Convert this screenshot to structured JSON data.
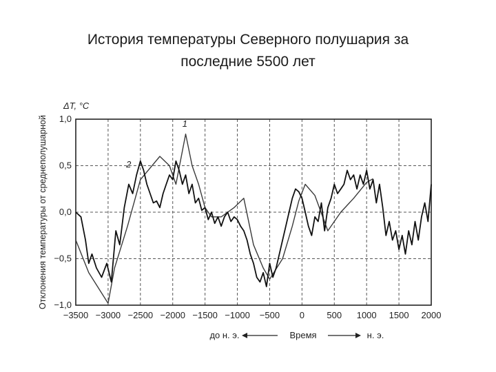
{
  "slide": {
    "title_line1": "История температуры Северного полушария за",
    "title_line2": "последние 5500 лет"
  },
  "chart_data": {
    "type": "line",
    "title": "История температуры Северного полушария за последние 5500 лет",
    "ylabel": "Отклонения температуры от среднеполушарной",
    "yunit": "ΔT, °C",
    "xlabel": "Время",
    "x_left_note": "до н. э.",
    "x_right_note": "н. э.",
    "xlim": [
      -3500,
      2000
    ],
    "ylim": [
      -1.0,
      1.0
    ],
    "grid": true,
    "x_ticks": [
      -3500,
      -3000,
      -2500,
      -2000,
      -1500,
      -1000,
      -500,
      0,
      500,
      1000,
      1500,
      2000
    ],
    "x_tick_labels": [
      "−3500",
      "−3000",
      "−2500",
      "−2000",
      "−1500",
      "−1000",
      "−500",
      "0",
      "500",
      "1000",
      "1500",
      "2000"
    ],
    "y_ticks": [
      -1.0,
      -0.5,
      0.0,
      0.5,
      1.0
    ],
    "y_tick_labels": [
      "−1,0",
      "−0,5",
      "0,0",
      "0,5",
      "1,0"
    ],
    "annotations": [
      {
        "text": "1",
        "x": -1850,
        "y": 0.92
      },
      {
        "text": "2",
        "x": -2720,
        "y": 0.48
      }
    ],
    "series": [
      {
        "label": "1",
        "color": "#3a3a3a",
        "x": [
          -3500,
          -3300,
          -3000,
          -2900,
          -2700,
          -2500,
          -2200,
          -2050,
          -1950,
          -1800,
          -1700,
          -1600,
          -1500,
          -1400,
          -1250,
          -1050,
          -900,
          -750,
          -600,
          -500,
          -300,
          -150,
          -50,
          50,
          200,
          400,
          600,
          800,
          1000,
          1100
        ],
        "y": [
          -0.3,
          -0.65,
          -0.98,
          -0.6,
          -0.15,
          0.35,
          0.6,
          0.5,
          0.3,
          0.84,
          0.5,
          0.3,
          0.05,
          -0.05,
          -0.05,
          0.05,
          0.15,
          -0.35,
          -0.6,
          -0.72,
          -0.5,
          -0.15,
          0.12,
          0.3,
          0.18,
          -0.2,
          0.0,
          0.15,
          0.32,
          0.36
        ]
      },
      {
        "label": "2",
        "color": "#111111",
        "x": [
          -3500,
          -3420,
          -3350,
          -3300,
          -3250,
          -3180,
          -3100,
          -3020,
          -2950,
          -2880,
          -2820,
          -2750,
          -2680,
          -2620,
          -2560,
          -2500,
          -2450,
          -2400,
          -2350,
          -2300,
          -2250,
          -2200,
          -2150,
          -2100,
          -2050,
          -2000,
          -1950,
          -1900,
          -1850,
          -1800,
          -1750,
          -1700,
          -1650,
          -1600,
          -1550,
          -1500,
          -1450,
          -1400,
          -1350,
          -1300,
          -1250,
          -1200,
          -1150,
          -1100,
          -1050,
          -1000,
          -950,
          -900,
          -850,
          -800,
          -750,
          -700,
          -650,
          -600,
          -550,
          -500,
          -450,
          -400,
          -350,
          -300,
          -250,
          -200,
          -150,
          -100,
          -50,
          0,
          50,
          100,
          150,
          200,
          250,
          300,
          350,
          400,
          450,
          500,
          550,
          600,
          650,
          700,
          750,
          800,
          850,
          900,
          950,
          1000,
          1050,
          1100,
          1150,
          1200,
          1250,
          1300,
          1350,
          1400,
          1450,
          1500,
          1550,
          1600,
          1650,
          1700,
          1750,
          1800,
          1850,
          1900,
          1950,
          2000
        ],
        "y": [
          0.0,
          -0.05,
          -0.3,
          -0.55,
          -0.45,
          -0.6,
          -0.7,
          -0.55,
          -0.75,
          -0.2,
          -0.35,
          0.05,
          0.3,
          0.2,
          0.4,
          0.55,
          0.45,
          0.3,
          0.2,
          0.1,
          0.12,
          0.05,
          0.2,
          0.3,
          0.4,
          0.35,
          0.55,
          0.45,
          0.3,
          0.4,
          0.2,
          0.3,
          0.1,
          0.15,
          0.02,
          0.05,
          -0.08,
          0.0,
          -0.12,
          -0.05,
          -0.15,
          -0.05,
          0.0,
          -0.1,
          -0.05,
          -0.08,
          -0.15,
          -0.2,
          -0.3,
          -0.45,
          -0.55,
          -0.7,
          -0.75,
          -0.65,
          -0.8,
          -0.55,
          -0.7,
          -0.6,
          -0.45,
          -0.3,
          -0.15,
          0.0,
          0.15,
          0.25,
          0.22,
          0.15,
          0.0,
          -0.15,
          -0.25,
          -0.05,
          -0.1,
          0.1,
          -0.2,
          0.05,
          0.15,
          0.3,
          0.2,
          0.25,
          0.3,
          0.45,
          0.35,
          0.4,
          0.25,
          0.4,
          0.3,
          0.45,
          0.25,
          0.35,
          0.1,
          0.3,
          0.05,
          -0.25,
          -0.1,
          -0.3,
          -0.2,
          -0.4,
          -0.25,
          -0.45,
          -0.2,
          -0.35,
          -0.1,
          -0.3,
          -0.05,
          0.1,
          -0.1,
          0.3
        ]
      }
    ]
  }
}
